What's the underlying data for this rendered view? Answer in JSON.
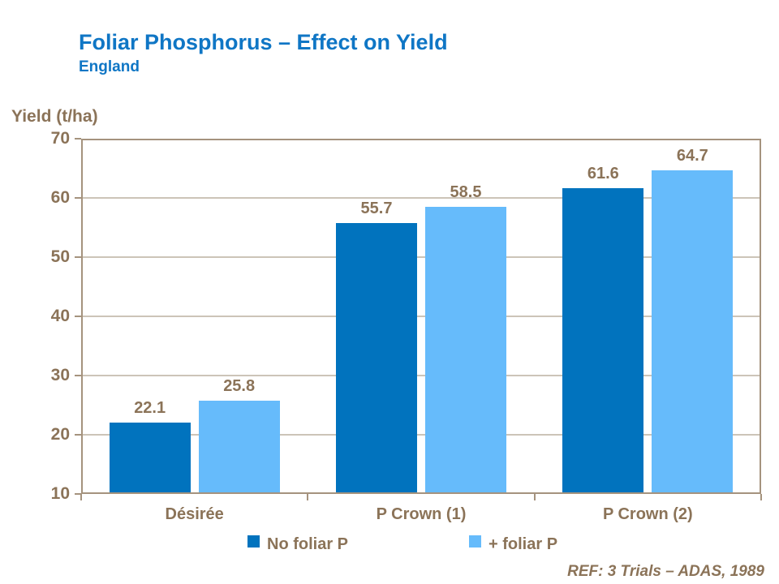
{
  "header": {
    "title": "Foliar Phosphorus – Effect on Yield",
    "subtitle": "England"
  },
  "footer": {
    "ref_note": "REF: 3 Trials – ADAS, 1989"
  },
  "colors": {
    "title_blue": "#0F76C5",
    "axis_text_brown": "#8B7358",
    "axis_line_tan": "#A5937E",
    "gridline_gray": "#CCC4B8",
    "series_no_foliar": "#0173BE",
    "series_plus_foliar": "#66BBFB"
  },
  "chart_data": {
    "type": "bar",
    "title": "Foliar Phosphorus – Effect on Yield",
    "subtitle": "England",
    "ylabel": "Yield (t/ha)",
    "xlabel": "",
    "ylim": [
      10,
      70
    ],
    "yticks": [
      10,
      20,
      30,
      40,
      50,
      60,
      70
    ],
    "grid": "horizontal",
    "legend_position": "bottom",
    "categories": [
      "Désirée",
      "P Crown (1)",
      "P Crown (2)"
    ],
    "series": [
      {
        "name": "No foliar P",
        "color": "#0173BE",
        "values": [
          22.1,
          55.7,
          61.6
        ]
      },
      {
        "name": "+ foliar P",
        "color": "#66BBFB",
        "values": [
          25.8,
          58.5,
          64.7
        ]
      }
    ],
    "annotation": "REF: 3 Trials – ADAS, 1989"
  }
}
